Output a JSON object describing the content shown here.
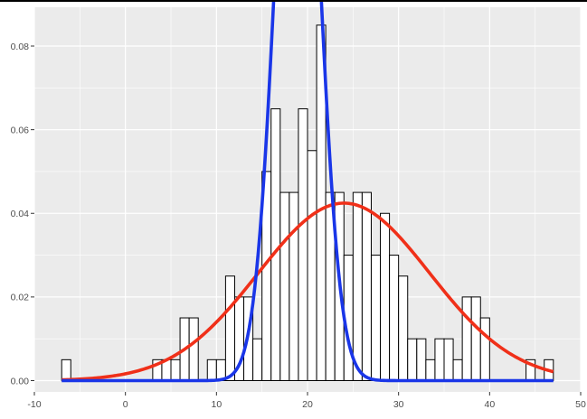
{
  "chart_data": {
    "type": "bar",
    "title": "",
    "xlabel": "",
    "ylabel": "",
    "xlim": [
      -10,
      50
    ],
    "ylim": [
      0,
      0.085
    ],
    "grid": true,
    "x_ticks": [
      -10,
      0,
      10,
      20,
      30,
      40,
      50
    ],
    "x_tick_labels": [
      "-10",
      "0",
      "10",
      "20",
      "30",
      "40",
      "50"
    ],
    "y_ticks": [
      0.0,
      0.02,
      0.04,
      0.06,
      0.08
    ],
    "y_tick_labels": [
      "0.00",
      "0.02",
      "0.04",
      "0.06",
      "0.08"
    ],
    "histogram": {
      "bin_width": 1,
      "bin_start": [
        -7,
        3,
        4,
        5,
        6,
        7,
        9,
        10,
        11,
        12,
        13,
        14,
        15,
        16,
        17,
        18,
        19,
        20,
        21,
        22,
        23,
        24,
        25,
        26,
        27,
        28,
        29,
        30,
        31,
        32,
        33,
        34,
        35,
        36,
        37,
        38,
        39,
        44,
        46
      ],
      "density": [
        0.005,
        0.005,
        0.005,
        0.005,
        0.015,
        0.015,
        0.005,
        0.005,
        0.025,
        0.02,
        0.02,
        0.01,
        0.05,
        0.065,
        0.045,
        0.045,
        0.065,
        0.055,
        0.085,
        0.045,
        0.045,
        0.03,
        0.045,
        0.045,
        0.03,
        0.04,
        0.03,
        0.025,
        0.01,
        0.01,
        0.005,
        0.01,
        0.01,
        0.005,
        0.02,
        0.02,
        0.015,
        0.005,
        0.005
      ],
      "fill": "#ffffff",
      "stroke": "#000000"
    },
    "series": [
      {
        "color": "#f03019",
        "curve": "normal",
        "mean": 24.0,
        "sd": 9.4,
        "x_range": [
          -7,
          47
        ]
      },
      {
        "color": "#1a36e8",
        "curve": "normal",
        "mean": 18.9,
        "sd": 2.32,
        "x_range": [
          -7,
          47
        ]
      }
    ],
    "colors": {
      "panel_background": "#ebebeb",
      "grid_major": "#ffffff",
      "axis_text": "#4d4d4d",
      "tick": "#333333"
    }
  }
}
